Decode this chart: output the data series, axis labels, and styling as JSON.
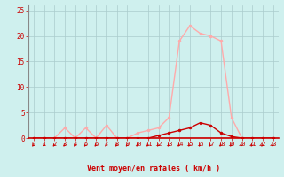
{
  "x": [
    0,
    1,
    2,
    3,
    4,
    5,
    6,
    7,
    8,
    9,
    10,
    11,
    12,
    13,
    14,
    15,
    16,
    17,
    18,
    19,
    20,
    21,
    22,
    23
  ],
  "y_rafales": [
    0,
    0,
    0,
    2,
    0,
    2,
    0,
    2.5,
    0,
    0,
    1,
    1.5,
    2,
    4,
    19,
    22,
    20.5,
    20,
    19,
    4,
    0,
    0,
    0,
    0
  ],
  "y_moyen": [
    0,
    0,
    0,
    0,
    0,
    0,
    0,
    0,
    0,
    0,
    0,
    0,
    0.5,
    1,
    1.5,
    2,
    3,
    2.5,
    1,
    0.3,
    0,
    0,
    0,
    0
  ],
  "bg_color": "#cff0ee",
  "grid_color": "#aacccc",
  "line_color_rafales": "#ffaaaa",
  "line_color_moyen": "#cc0000",
  "xlabel": "Vent moyen/en rafales ( km/h )",
  "ylim": [
    0,
    26
  ],
  "xlim": [
    -0.5,
    23.5
  ],
  "yticks": [
    0,
    5,
    10,
    15,
    20,
    25
  ],
  "xticks": [
    0,
    1,
    2,
    3,
    4,
    5,
    6,
    7,
    8,
    9,
    10,
    11,
    12,
    13,
    14,
    15,
    16,
    17,
    18,
    19,
    20,
    21,
    22,
    23
  ],
  "xlabel_color": "#cc0000",
  "tick_color": "#cc0000",
  "axis_color": "#888888",
  "baseline_color": "#cc0000"
}
